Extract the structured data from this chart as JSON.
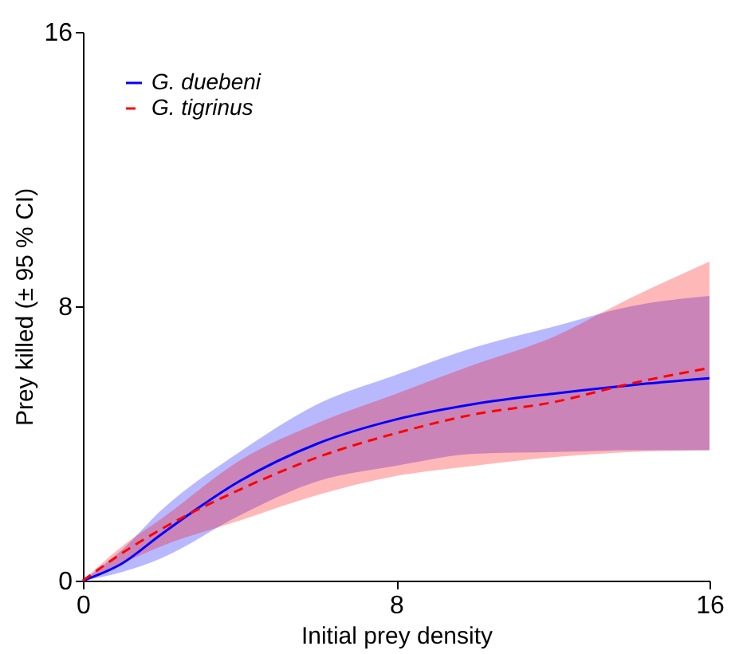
{
  "chart_data": {
    "type": "line",
    "xlabel": "Initial prey density",
    "ylabel": "Prey killed (± 95 % CI)",
    "x": [
      0,
      1,
      2,
      4,
      6,
      8,
      10,
      12,
      14,
      16
    ],
    "series": [
      {
        "name": "G. duebeni",
        "color": "#0000ff",
        "line_style": "solid",
        "values": [
          0,
          0.5,
          1.35,
          2.9,
          4.0,
          4.7,
          5.15,
          5.45,
          5.7,
          5.9
        ],
        "lower": [
          0,
          0.25,
          0.65,
          1.9,
          2.9,
          3.35,
          3.7,
          3.75,
          3.8,
          3.8
        ],
        "upper": [
          0,
          0.9,
          2.05,
          3.75,
          5.15,
          6.0,
          6.8,
          7.4,
          8.0,
          8.3
        ]
      },
      {
        "name": "G. tigrinus",
        "color": "#ff0000",
        "line_style": "dashed",
        "values": [
          0,
          0.8,
          1.5,
          2.65,
          3.6,
          4.3,
          4.85,
          5.2,
          5.75,
          6.2
        ],
        "lower": [
          0,
          0.5,
          1.0,
          1.75,
          2.5,
          3.05,
          3.35,
          3.6,
          3.75,
          3.8
        ],
        "upper": [
          0,
          1.0,
          1.8,
          3.5,
          4.6,
          5.45,
          6.3,
          7.1,
          8.25,
          9.3
        ]
      }
    ],
    "xlim": [
      0,
      16
    ],
    "xticks": [
      0,
      8,
      16
    ],
    "ylim": [
      0,
      16
    ],
    "yticks": [
      0,
      8,
      16
    ],
    "grid": false,
    "legend": "top left"
  }
}
